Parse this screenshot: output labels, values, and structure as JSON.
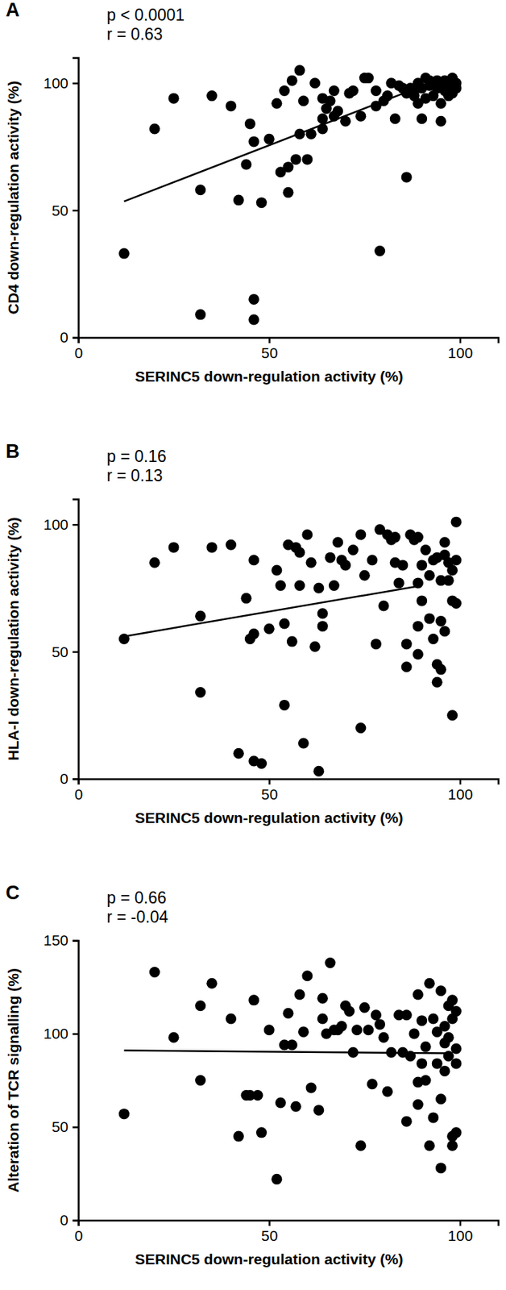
{
  "chart_data": [
    {
      "type": "scatter",
      "title": "A",
      "annotations": [
        "p < 0.0001",
        "r = 0.63"
      ],
      "x_label": "SERINC5 down-regulation activity (%)",
      "y_label": "CD4 down-regulation activity (%)",
      "xlim": [
        0,
        110
      ],
      "xticks": [
        0,
        50,
        100
      ],
      "ylim": [
        0,
        110
      ],
      "yticks": [
        0,
        50,
        100
      ],
      "color": "#000000",
      "marker": "circle",
      "x": [
        12,
        20,
        25,
        32,
        32,
        35,
        40,
        42,
        44,
        45,
        46,
        46,
        46,
        48,
        50,
        52,
        53,
        54,
        55,
        55,
        56,
        57,
        58,
        58,
        59,
        60,
        61,
        62,
        64,
        64,
        64,
        65,
        66,
        67,
        67,
        68,
        70,
        71,
        72,
        74,
        75,
        76,
        78,
        78,
        79,
        80,
        81,
        82,
        83,
        84,
        85,
        86,
        86,
        87,
        88,
        88,
        89,
        90,
        90,
        91,
        92,
        92,
        93,
        93,
        94,
        94,
        95,
        95,
        95,
        96,
        96,
        97,
        97,
        98,
        98,
        98,
        99,
        99,
        89,
        91
      ],
      "values": [
        33,
        82,
        94,
        58,
        9,
        95,
        91,
        54,
        68,
        84,
        77,
        15,
        7,
        53,
        78,
        92,
        65,
        97,
        67,
        57,
        101,
        70,
        80,
        105,
        93,
        70,
        80,
        100,
        94,
        82,
        86,
        90,
        93,
        87,
        97,
        89,
        85,
        96,
        97,
        87,
        102,
        102,
        97,
        91,
        34,
        93,
        95,
        100,
        86,
        99,
        98,
        63,
        96,
        98,
        97,
        95,
        100,
        98,
        86,
        102,
        99,
        101,
        95,
        100,
        98,
        101,
        100,
        85,
        92,
        97,
        101,
        100,
        95,
        99,
        102,
        96,
        100,
        98,
        92,
        94
      ],
      "fit": {
        "x": [
          12,
          87
        ],
        "values": [
          53.5,
          97
        ]
      }
    },
    {
      "type": "scatter",
      "title": "B",
      "annotations": [
        "p = 0.16",
        "r  = 0.13"
      ],
      "x_label": "SERINC5 down-regulation activity (%)",
      "y_label": "HLA-I down-regulation activity (%)",
      "xlim": [
        0,
        110
      ],
      "xticks": [
        0,
        50,
        100
      ],
      "ylim": [
        0,
        110
      ],
      "yticks": [
        0,
        50,
        100
      ],
      "color": "#000000",
      "marker": "circle",
      "x": [
        12,
        20,
        25,
        32,
        32,
        35,
        40,
        42,
        44,
        45,
        46,
        46,
        46,
        48,
        50,
        52,
        53,
        54,
        54,
        55,
        56,
        57,
        58,
        58,
        59,
        60,
        61,
        62,
        63,
        63,
        64,
        64,
        66,
        67,
        68,
        69,
        70,
        72,
        74,
        74,
        75,
        77,
        78,
        79,
        80,
        81,
        82,
        83,
        83,
        84,
        85,
        86,
        86,
        87,
        88,
        89,
        89,
        89,
        89,
        90,
        91,
        92,
        92,
        93,
        93,
        94,
        94,
        94,
        95,
        95,
        96,
        96,
        96,
        97,
        97,
        98,
        98,
        98,
        99,
        99,
        99,
        90,
        95
      ],
      "values": [
        55,
        85,
        91,
        64,
        34,
        91,
        92,
        10,
        71,
        55,
        57,
        86,
        7,
        6,
        59,
        82,
        76,
        61,
        29,
        92,
        54,
        91,
        89,
        76,
        14,
        96,
        85,
        52,
        3,
        75,
        60,
        65,
        87,
        76,
        93,
        86,
        84,
        90,
        96,
        20,
        80,
        86,
        53,
        98,
        68,
        96,
        94,
        85,
        95,
        77,
        84,
        53,
        44,
        96,
        94,
        60,
        95,
        49,
        77,
        70,
        90,
        63,
        80,
        86,
        55,
        45,
        38,
        87,
        62,
        78,
        93,
        58,
        88,
        85,
        78,
        70,
        82,
        25,
        101,
        86,
        69,
        84,
        43
      ],
      "fit": {
        "x": [
          12,
          90
        ],
        "values": [
          56,
          76
        ]
      }
    },
    {
      "type": "scatter",
      "title": "C",
      "annotations": [
        "p = 0.66",
        "r  = -0.04"
      ],
      "x_label": "SERINC5 down-regulation activity (%)",
      "y_label": "Alteration of TCR signalling (%)",
      "xlim": [
        0,
        110
      ],
      "xticks": [
        0,
        50,
        100
      ],
      "ylim": [
        0,
        150
      ],
      "yticks": [
        0,
        50,
        100,
        150
      ],
      "color": "#000000",
      "marker": "circle",
      "x": [
        12,
        20,
        25,
        32,
        32,
        35,
        40,
        42,
        44,
        45,
        46,
        47,
        48,
        50,
        52,
        53,
        54,
        55,
        56,
        57,
        58,
        59,
        60,
        61,
        63,
        64,
        64,
        65,
        66,
        67,
        68,
        69,
        70,
        71,
        72,
        73,
        74,
        75,
        76,
        77,
        78,
        79,
        80,
        81,
        82,
        84,
        85,
        86,
        86,
        87,
        88,
        89,
        89,
        89,
        90,
        90,
        91,
        91,
        92,
        92,
        93,
        93,
        94,
        94,
        95,
        95,
        95,
        96,
        96,
        97,
        97,
        97,
        98,
        98,
        98,
        98,
        99,
        99,
        99,
        99,
        96
      ],
      "values": [
        57,
        133,
        98,
        115,
        75,
        127,
        108,
        45,
        67,
        67,
        118,
        67,
        47,
        102,
        22,
        63,
        94,
        111,
        94,
        61,
        121,
        101,
        131,
        71,
        59,
        119,
        108,
        100,
        138,
        102,
        102,
        104,
        115,
        112,
        90,
        102,
        40,
        114,
        102,
        73,
        110,
        105,
        98,
        69,
        90,
        110,
        90,
        53,
        110,
        88,
        100,
        74,
        121,
        62,
        107,
        84,
        93,
        75,
        40,
        127,
        55,
        108,
        101,
        84,
        28,
        123,
        65,
        80,
        104,
        115,
        98,
        88,
        45,
        40,
        118,
        108,
        112,
        84,
        92,
        47,
        95
      ],
      "fit": {
        "x": [
          12,
          98
        ],
        "values": [
          91,
          89.5
        ]
      }
    }
  ]
}
